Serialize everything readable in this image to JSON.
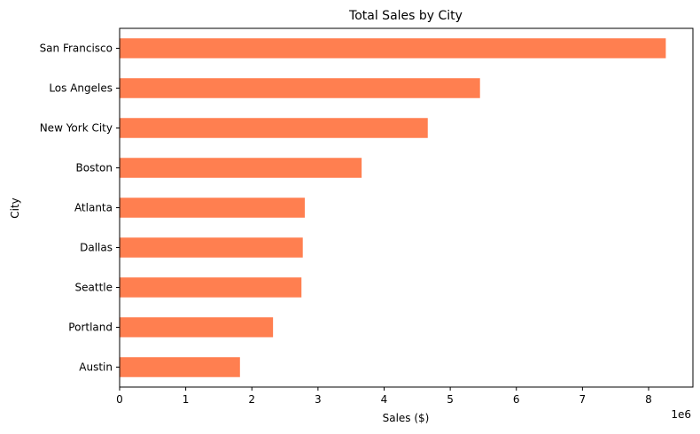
{
  "chart_data": {
    "type": "bar",
    "orientation": "horizontal",
    "title": "Total Sales by City",
    "xlabel": "Sales ($)",
    "ylabel": "City",
    "x_offset_label": "1e6",
    "xlim": [
      0,
      8.67
    ],
    "x_ticks": [
      0,
      1,
      2,
      3,
      4,
      5,
      6,
      7,
      8
    ],
    "x_tick_labels": [
      "0",
      "1",
      "2",
      "3",
      "4",
      "5",
      "6",
      "7",
      "8"
    ],
    "categories": [
      "San Francisco",
      "Los Angeles",
      "New York City",
      "Boston",
      "Atlanta",
      "Dallas",
      "Seattle",
      "Portland",
      "Austin"
    ],
    "values": [
      8.26,
      5.45,
      4.66,
      3.66,
      2.8,
      2.77,
      2.75,
      2.32,
      1.82
    ],
    "bar_color": "#ff7f50",
    "grid": false,
    "legend": "none"
  }
}
